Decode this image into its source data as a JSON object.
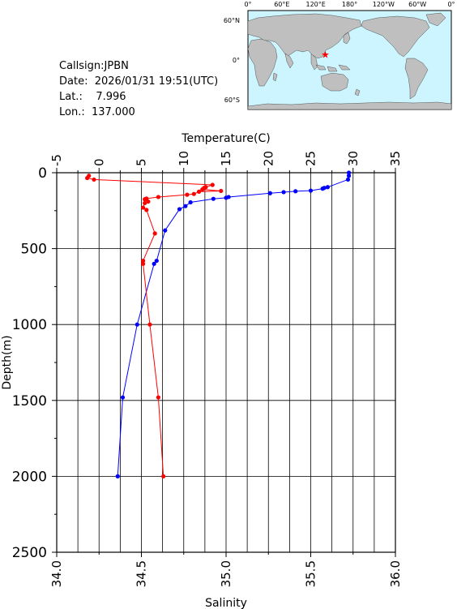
{
  "info": {
    "callsign": "Callsign:JPBN",
    "date": "Date:  2026/01/31 19:51(UTC)",
    "lat": "Lat.:    7.996",
    "lon": "Lon.:  137.000"
  },
  "map": {
    "lon_labels": [
      "0°",
      "60°E",
      "120°E",
      "180°",
      "120°W",
      "60°W",
      "0°"
    ],
    "lat_labels": [
      "60°N",
      "0°",
      "60°S"
    ],
    "station": {
      "lon": 137.0,
      "lat": 7.996
    },
    "colors": {
      "ocean": "#ccf5ff",
      "land": "#bfbfbf",
      "marker": "#ff0000"
    }
  },
  "chart_data": {
    "type": "line",
    "ylabel": "Depth(m)",
    "top_xlabel": "Temperature(C)",
    "bottom_xlabel": "Salinity",
    "temperature_lim": [
      -5,
      35
    ],
    "salinity_lim": [
      34.0,
      36.0
    ],
    "depth_lim": [
      0,
      2500
    ],
    "temperature_ticks": [
      "-5",
      "0",
      "5",
      "10",
      "15",
      "20",
      "25",
      "30",
      "35"
    ],
    "salinity_ticks": [
      "34.0",
      "34.5",
      "35.0",
      "35.5",
      "36.0"
    ],
    "depth_ticks": [
      "0",
      "500",
      "1000",
      "1500",
      "2000",
      "2500"
    ],
    "grid": true,
    "series": [
      {
        "color": "#0000ff",
        "axis": "temperature",
        "points": [
          [
            29.5,
            0
          ],
          [
            29.5,
            20
          ],
          [
            29.4,
            45
          ],
          [
            27.0,
            95
          ],
          [
            26.6,
            100
          ],
          [
            26.4,
            105
          ],
          [
            25.0,
            118
          ],
          [
            23.2,
            122
          ],
          [
            21.8,
            128
          ],
          [
            20.2,
            135
          ],
          [
            15.3,
            160
          ],
          [
            15.0,
            165
          ],
          [
            13.5,
            172
          ],
          [
            10.8,
            195
          ],
          [
            10.2,
            220
          ],
          [
            9.5,
            240
          ],
          [
            7.8,
            380
          ],
          [
            6.8,
            580
          ],
          [
            6.5,
            600
          ],
          [
            4.5,
            1000
          ],
          [
            2.8,
            1480
          ],
          [
            2.2,
            2000
          ]
        ]
      },
      {
        "color": "#ff0000",
        "axis": "salinity",
        "points": [
          [
            34.19,
            20
          ],
          [
            34.18,
            35
          ],
          [
            34.22,
            45
          ],
          [
            34.92,
            80
          ],
          [
            34.88,
            95
          ],
          [
            34.87,
            100
          ],
          [
            34.86,
            110
          ],
          [
            34.97,
            120
          ],
          [
            34.84,
            125
          ],
          [
            34.81,
            140
          ],
          [
            34.77,
            145
          ],
          [
            34.6,
            160
          ],
          [
            34.53,
            170
          ],
          [
            34.52,
            175
          ],
          [
            34.54,
            190
          ],
          [
            34.52,
            200
          ],
          [
            34.51,
            230
          ],
          [
            34.53,
            245
          ],
          [
            34.58,
            400
          ],
          [
            34.51,
            580
          ],
          [
            34.51,
            600
          ],
          [
            34.55,
            1000
          ],
          [
            34.6,
            1480
          ],
          [
            34.63,
            2000
          ]
        ]
      }
    ]
  }
}
